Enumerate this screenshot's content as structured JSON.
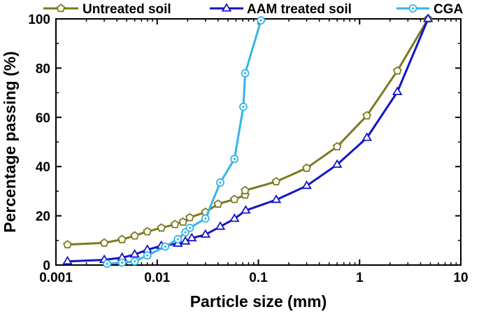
{
  "chart_data": {
    "type": "line",
    "xscale": "log",
    "xlim": [
      0.001,
      10
    ],
    "ylim": [
      0,
      100
    ],
    "xlabel": "Particle size (mm)",
    "ylabel": "Percentage passing (%)",
    "x_ticks": [
      0.001,
      0.01,
      0.1,
      1,
      10
    ],
    "x_tick_labels": [
      "0.001",
      "0.01",
      "0.1",
      "1",
      "10"
    ],
    "y_ticks": [
      0,
      20,
      40,
      60,
      80,
      100
    ],
    "y_tick_labels": [
      "0",
      "20",
      "40",
      "60",
      "80",
      "100"
    ],
    "grid": false,
    "legend_position": "top",
    "series": [
      {
        "name": "Untreated soil",
        "color": "#7a7a1e",
        "marker": "pentagon",
        "x": [
          0.0013,
          0.003,
          0.0045,
          0.006,
          0.008,
          0.011,
          0.015,
          0.018,
          0.021,
          0.03,
          0.04,
          0.058,
          0.074,
          0.074,
          0.15,
          0.3,
          0.6,
          1.18,
          2.36,
          4.75
        ],
        "y": [
          8.3,
          9.0,
          10.4,
          11.9,
          13.6,
          15.1,
          16.5,
          17.5,
          19.3,
          21.5,
          24.8,
          26.7,
          28.5,
          30.3,
          33.9,
          39.4,
          48.1,
          60.7,
          78.9,
          100
        ]
      },
      {
        "name": "AAM treated soil",
        "color": "#1414c8",
        "marker": "triangle",
        "x": [
          0.0013,
          0.003,
          0.0045,
          0.006,
          0.008,
          0.011,
          0.016,
          0.019,
          0.022,
          0.03,
          0.042,
          0.058,
          0.075,
          0.15,
          0.3,
          0.6,
          1.18,
          2.36,
          4.75
        ],
        "y": [
          1.5,
          2.1,
          3.0,
          4.3,
          6.2,
          7.8,
          8.7,
          9.6,
          10.9,
          12.4,
          15.6,
          18.8,
          22.2,
          26.5,
          32.2,
          40.8,
          51.7,
          70.3,
          100
        ]
      },
      {
        "name": "CGA",
        "color": "#33b5e8",
        "marker": "circle-dot",
        "x": [
          0.0032,
          0.0045,
          0.006,
          0.008,
          0.012,
          0.016,
          0.019,
          0.021,
          0.03,
          0.042,
          0.058,
          0.071,
          0.074,
          0.106
        ],
        "y": [
          0.5,
          1.0,
          1.5,
          3.9,
          7.5,
          10.5,
          13.3,
          15.1,
          18.9,
          33.5,
          43.1,
          64.3,
          77.9,
          99.4
        ]
      }
    ]
  }
}
